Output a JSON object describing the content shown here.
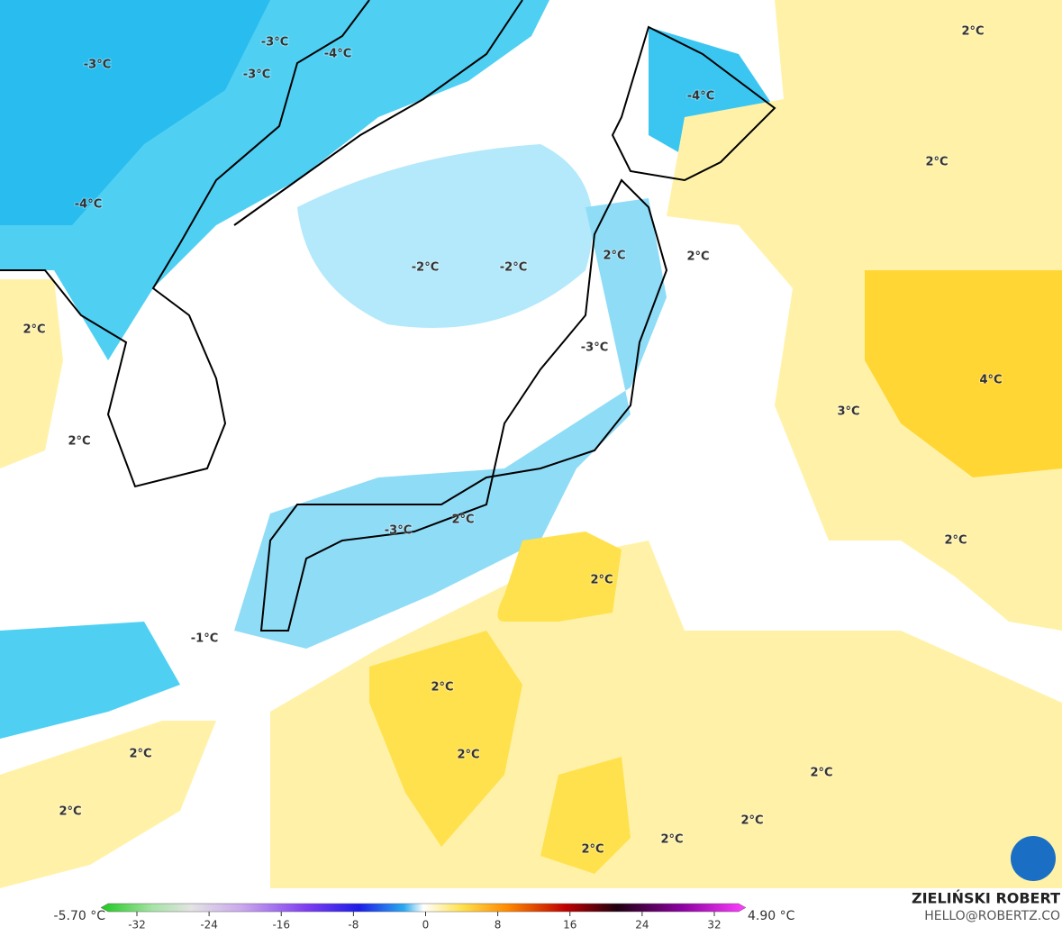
{
  "map": {
    "labels": [
      "-3°C",
      "-3°C",
      "-3°C",
      "-4°C",
      "-4°C",
      "-4°C",
      "2°C",
      "2°C",
      "-2°C",
      "-2°C",
      "2°C",
      "2°C",
      "2°C",
      "2°C",
      "-3°C",
      "4°C",
      "3°C",
      "2°C",
      "-3°C",
      "2°C",
      "2°C",
      "-1°C",
      "2°C",
      "2°C",
      "2°C",
      "2°C",
      "2°C",
      "2°C",
      "2°C",
      "2°C"
    ],
    "colorbar": {
      "min_label": "-5.70 °C",
      "max_label": "4.90 °C",
      "ticks": [
        -32,
        -24,
        -16,
        -8,
        0,
        8,
        16,
        24,
        32
      ]
    },
    "credit": {
      "name": "ZIELIŃSKI ROBERT",
      "contact": "HELLO@ROBERTZ.CO"
    }
  }
}
